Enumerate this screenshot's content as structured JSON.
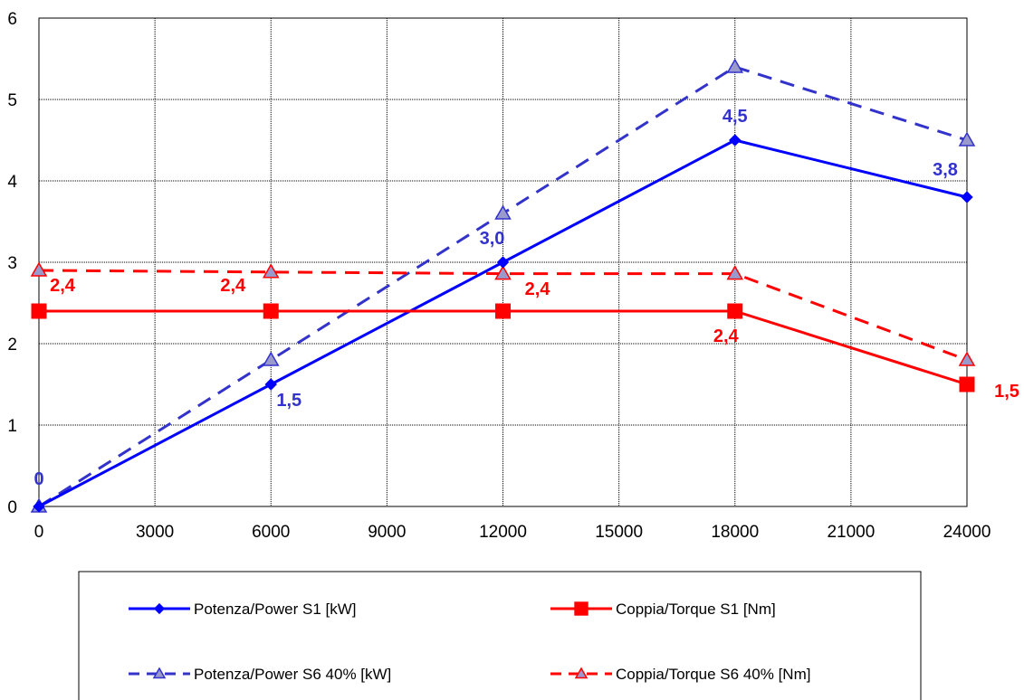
{
  "chart_data": {
    "type": "line",
    "title": "",
    "xlabel": "",
    "ylabel": "",
    "xlim": [
      0,
      24000
    ],
    "ylim": [
      0,
      6
    ],
    "xticks": [
      "0",
      "3000",
      "6000",
      "9000",
      "12000",
      "15000",
      "18000",
      "21000",
      "24000"
    ],
    "yticks": [
      "0",
      "1",
      "2",
      "3",
      "4",
      "5",
      "6"
    ],
    "grid": true,
    "legend_position": "bottom",
    "x": [
      0,
      6000,
      12000,
      18000,
      24000
    ],
    "series": [
      {
        "name": "Potenza/Power S1 [kW]",
        "values": [
          0,
          1.5,
          3.0,
          4.5,
          3.8
        ],
        "color": "#0000FF",
        "dash": "solid",
        "marker": "diamond",
        "label_color": "#3333CC",
        "labels": [
          "0",
          "1,5",
          "3,0",
          "4,5",
          "3,8"
        ]
      },
      {
        "name": "Coppia/Torque S1 [Nm]",
        "values": [
          2.4,
          2.4,
          2.4,
          2.4,
          1.5
        ],
        "color": "#FF0000",
        "dash": "solid",
        "marker": "square",
        "label_color": "#FF0000",
        "labels": [
          "2,4",
          "2,4",
          "2,4",
          "2,4",
          "1,5"
        ]
      },
      {
        "name": "Potenza/Power S6 40% [kW]",
        "values": [
          0,
          1.8,
          3.6,
          5.4,
          4.5
        ],
        "color": "#3333CC",
        "dash": "dashed",
        "marker": "triangle",
        "marker_color": "#9999CC"
      },
      {
        "name": "Coppia/Torque S6 40% [Nm]",
        "values": [
          2.9,
          2.88,
          2.86,
          2.86,
          1.8
        ],
        "color": "#FF0000",
        "dash": "dashed",
        "marker": "triangle",
        "marker_color": "#9999CC"
      }
    ]
  }
}
